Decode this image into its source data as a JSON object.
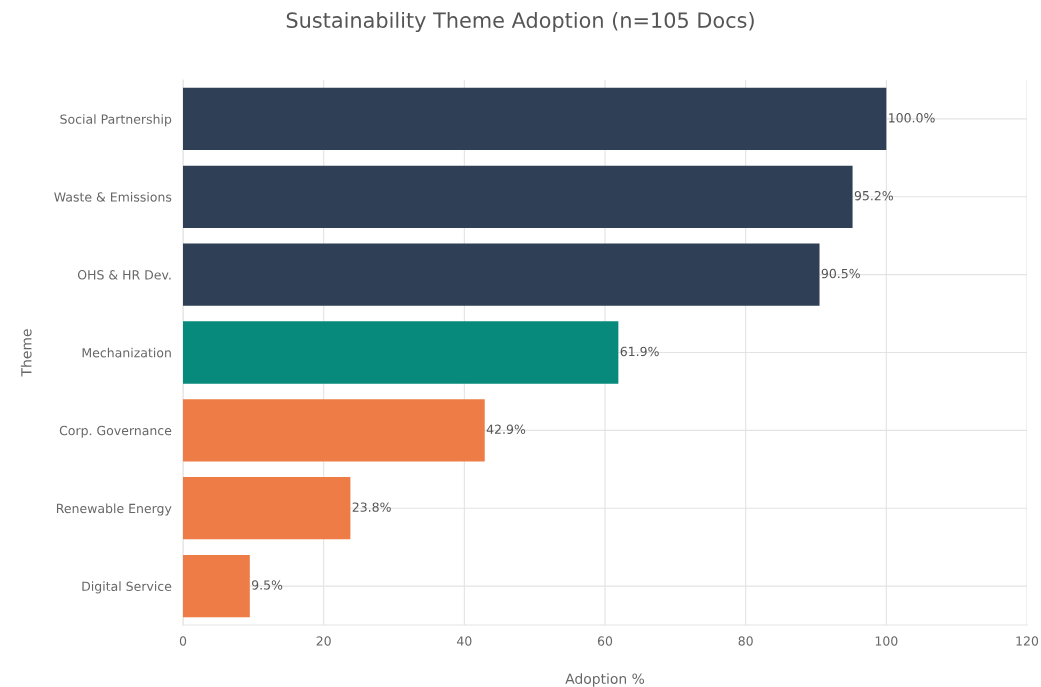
{
  "chart_data": {
    "type": "bar",
    "orientation": "horizontal",
    "title": "Sustainability Theme Adoption (n=105 Docs)",
    "xlabel": "Adoption %",
    "ylabel": "Theme",
    "categories": [
      "Social Partnership",
      "Waste & Emissions",
      "OHS & HR Dev.",
      "Mechanization",
      "Corp. Governance",
      "Renewable Energy",
      "Digital Service"
    ],
    "values": [
      100.0,
      95.2,
      90.5,
      61.9,
      42.9,
      23.8,
      9.5
    ],
    "colors": [
      "#2e3f56",
      "#2e3f56",
      "#2e3f56",
      "#07897b",
      "#ed7c46",
      "#ed7c46",
      "#ed7c46"
    ],
    "value_labels": [
      "100.0%",
      "95.2%",
      "90.5%",
      "61.9%",
      "42.9%",
      "23.8%",
      "9.5%"
    ],
    "xlim": [
      0,
      120
    ],
    "xticks": [
      0,
      20,
      40,
      60,
      80,
      100,
      120
    ],
    "grid": true,
    "legend": false
  }
}
